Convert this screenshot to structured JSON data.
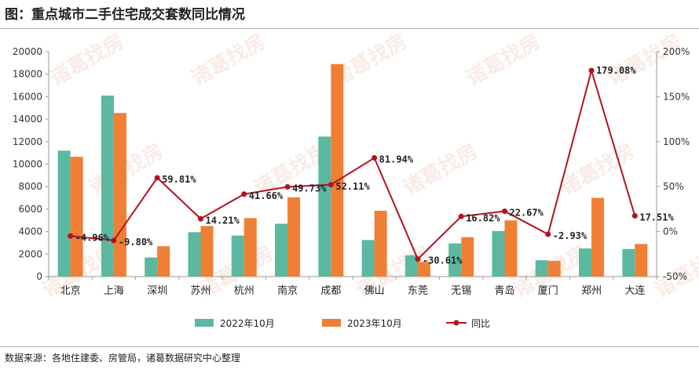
{
  "header": {
    "title": "图：重点城市二手住宅成交套数同比情况"
  },
  "footer": {
    "source": "数据来源：各地住建委、房管局，诸葛数据研究中心整理"
  },
  "watermark": {
    "text": "诸葛找房"
  },
  "chart_data": {
    "type": "bar",
    "title": "重点城市二手住宅成交套数同比情况",
    "categories": [
      "北京",
      "上海",
      "深圳",
      "苏州",
      "杭州",
      "南京",
      "成都",
      "佛山",
      "东莞",
      "无锡",
      "青岛",
      "厦门",
      "郑州",
      "大连"
    ],
    "series": [
      {
        "name": "2022年10月",
        "type": "bar",
        "axis": "left",
        "color": "#5cb8a0",
        "values": [
          11200,
          16100,
          1700,
          3950,
          3650,
          4700,
          12450,
          3250,
          1900,
          2950,
          4050,
          1450,
          2500,
          2450
        ]
      },
      {
        "name": "2023年10月",
        "type": "bar",
        "axis": "left",
        "color": "#f07f36",
        "values": [
          10650,
          14550,
          2700,
          4500,
          5200,
          7050,
          18900,
          5850,
          1300,
          3500,
          5000,
          1400,
          7000,
          2900
        ]
      },
      {
        "name": "同比",
        "type": "line",
        "axis": "right",
        "color": "#b3121e",
        "values": [
          -4.96,
          -9.8,
          59.81,
          14.21,
          41.66,
          49.73,
          52.11,
          81.94,
          -30.61,
          16.82,
          22.67,
          -2.93,
          179.08,
          17.51
        ],
        "labels": [
          "-4.96%",
          "-9.80%",
          "59.81%",
          "14.21%",
          "41.66%",
          "49.73%",
          "52.11%",
          "81.94%",
          "-30.61%",
          "16.82%",
          "22.67%",
          "-2.93%",
          "179.08%",
          "17.51%"
        ]
      }
    ],
    "y_left": {
      "min": 0,
      "max": 20000,
      "step": 2000,
      "ticks": [
        "0",
        "2000",
        "4000",
        "6000",
        "8000",
        "10000",
        "12000",
        "14000",
        "16000",
        "18000",
        "20000"
      ]
    },
    "y_right": {
      "min": -50,
      "max": 200,
      "step": 50,
      "ticks": [
        "-50%",
        "0%",
        "50%",
        "100%",
        "150%",
        "200%"
      ]
    },
    "legend": {
      "position": "bottom",
      "entries": [
        "2022年10月",
        "2023年10月",
        "同比"
      ]
    },
    "grid": false
  }
}
